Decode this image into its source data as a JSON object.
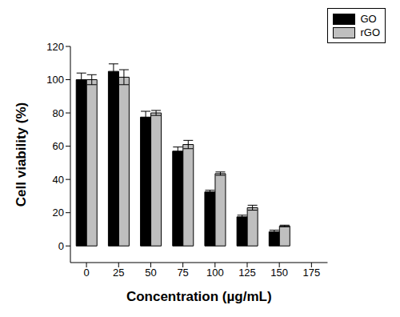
{
  "chart_data": {
    "type": "bar",
    "x_label": "Concentration (µg/mL)",
    "y_label": "Cell viability (%)",
    "categories": [
      "0",
      "25",
      "50",
      "75",
      "100",
      "125",
      "150",
      "175"
    ],
    "series": [
      {
        "name": "GO",
        "color": "#000000",
        "values": [
          100,
          105,
          77.5,
          57,
          32.5,
          17.5,
          8.5,
          null
        ],
        "errors": [
          4,
          4.5,
          3.5,
          2.5,
          1,
          1,
          1,
          null
        ]
      },
      {
        "name": "rGO",
        "color": "#bfbfbf",
        "values": [
          100,
          101.5,
          80,
          61,
          43.5,
          23,
          12,
          null
        ],
        "errors": [
          3,
          4.5,
          1.5,
          2.5,
          1,
          1.5,
          0.5,
          null
        ]
      }
    ],
    "ylim": [
      -10,
      120
    ],
    "yticks": [
      0,
      20,
      40,
      60,
      80,
      100,
      120
    ],
    "grid": false,
    "legend": "upper right"
  }
}
